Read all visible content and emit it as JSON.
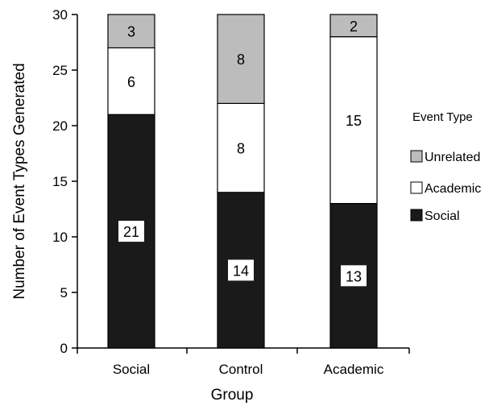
{
  "chart_data": {
    "type": "bar",
    "stacked": true,
    "categories": [
      "Social",
      "Control",
      "Academic"
    ],
    "series": [
      {
        "name": "Social",
        "values": [
          21,
          14,
          13
        ],
        "color": "#1a1a1a"
      },
      {
        "name": "Academic",
        "values": [
          6,
          8,
          15
        ],
        "color": "#ffffff"
      },
      {
        "name": "Unrelated",
        "values": [
          3,
          8,
          2
        ],
        "color": "#bcbcbc"
      }
    ],
    "xlabel": "Group",
    "ylabel": "Number of Event Types Generated",
    "ylim": [
      0,
      30
    ],
    "yticks": [
      0,
      5,
      10,
      15,
      20,
      25,
      30
    ],
    "grid": false,
    "legend": {
      "title": "Event Type",
      "placement": "right",
      "order": [
        "Unrelated",
        "Academic",
        "Social"
      ]
    }
  }
}
